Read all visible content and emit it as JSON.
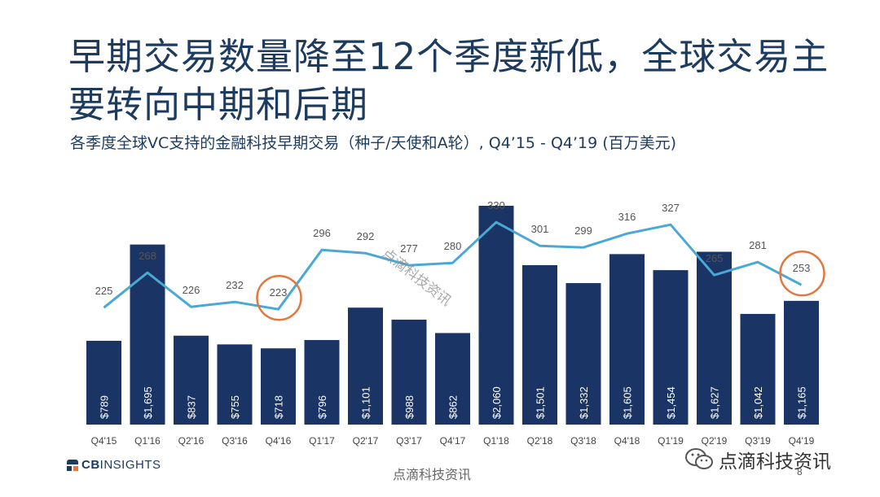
{
  "title": "早期交易数量降至12个季度新低，全球交易主要转向中期和后期",
  "subtitle": "各季度全球VC支持的金融科技早期交易（种子/天使和A轮）, Q4’15 - Q4’19 (百万美元)",
  "chart_data": {
    "type": "bar+line",
    "categories": [
      "Q4'15",
      "Q1'16",
      "Q2'16",
      "Q3'16",
      "Q4'16",
      "Q1'17",
      "Q2'17",
      "Q3'17",
      "Q4'17",
      "Q1'18",
      "Q2'18",
      "Q3'18",
      "Q4'18",
      "Q1'19",
      "Q2'19",
      "Q3'19",
      "Q4'19"
    ],
    "series": [
      {
        "kind": "bar",
        "values": [
          789,
          1695,
          837,
          755,
          718,
          796,
          1101,
          988,
          862,
          2060,
          1501,
          1332,
          1605,
          1454,
          1627,
          1042,
          1165
        ],
        "labels": [
          "$789",
          "$1,695",
          "$837",
          "$755",
          "$718",
          "$796",
          "$1,101",
          "$988",
          "$862",
          "$2,060",
          "$1,501",
          "$1,332",
          "$1,605",
          "$1,454",
          "$1,627",
          "$1,042",
          "$1,165"
        ],
        "color": "#1b3466"
      },
      {
        "kind": "line",
        "values": [
          225,
          268,
          226,
          232,
          223,
          296,
          292,
          277,
          280,
          330,
          301,
          299,
          316,
          327,
          265,
          281,
          253
        ],
        "color": "#4aa8d4"
      }
    ],
    "highlighted_points": [
      "Q4'16",
      "Q4'19"
    ],
    "highlight_color": "#e2773f",
    "grid": false
  },
  "footer": {
    "logo_prefix": "CB",
    "logo_suffix": "INSIGHTS",
    "center_text": "点滴科技资讯",
    "wechat_text": "点滴科技资讯",
    "page_number": "8"
  },
  "watermark": "点滴科技资讯"
}
